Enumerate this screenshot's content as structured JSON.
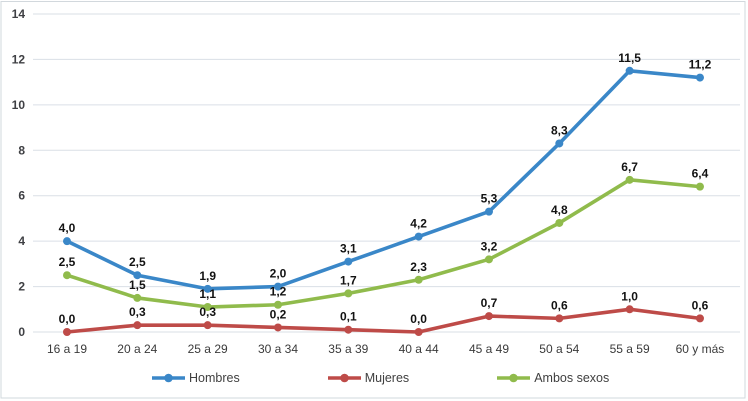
{
  "chart_data": {
    "type": "line",
    "title": "",
    "xlabel": "",
    "ylabel": "",
    "categories": [
      "16 a 19",
      "20 a 24",
      "25 a 29",
      "30 a 34",
      "35 a 39",
      "40 a 44",
      "45 a 49",
      "50 a 54",
      "55 a 59",
      "60 y más"
    ],
    "series": [
      {
        "name": "Hombres",
        "color": "#3A87C8",
        "values": [
          4.0,
          2.5,
          1.9,
          2.0,
          3.1,
          4.2,
          5.3,
          8.3,
          11.5,
          11.2
        ],
        "labels": [
          "4,0",
          "2,5",
          "1,9",
          "2,0",
          "3,1",
          "4,2",
          "5,3",
          "8,3",
          "11,5",
          "11,2"
        ]
      },
      {
        "name": "Mujeres",
        "color": "#BE4B48",
        "values": [
          0.0,
          0.3,
          0.3,
          0.2,
          0.1,
          0.0,
          0.7,
          0.6,
          1.0,
          0.6
        ],
        "labels": [
          "0,0",
          "0,3",
          "0,3",
          "0,2",
          "0,1",
          "0,0",
          "0,7",
          "0,6",
          "1,0",
          "0,6"
        ]
      },
      {
        "name": "Ambos sexos",
        "color": "#90BB4C",
        "values": [
          2.5,
          1.5,
          1.1,
          1.2,
          1.7,
          2.3,
          3.2,
          4.8,
          6.7,
          6.4
        ],
        "labels": [
          "2,5",
          "1,5",
          "1,1",
          "1,2",
          "1,7",
          "2,3",
          "3,2",
          "4,8",
          "6,7",
          "6,4"
        ]
      }
    ],
    "ylim": [
      0,
      14
    ],
    "y_ticks": [
      "0",
      "2",
      "4",
      "6",
      "8",
      "10",
      "12",
      "14"
    ],
    "grid": true,
    "legend_position": "bottom",
    "legend_entries": [
      "Hombres",
      "Mujeres",
      "Ambos sexos"
    ]
  },
  "colors": {
    "background": "#FFFFFF",
    "gridline": "#DADFE6",
    "chart_border": "#D2D8DD",
    "axis_text": "#3F4044",
    "category_text": "#3A3A3A",
    "data_label_text": "#121212"
  }
}
